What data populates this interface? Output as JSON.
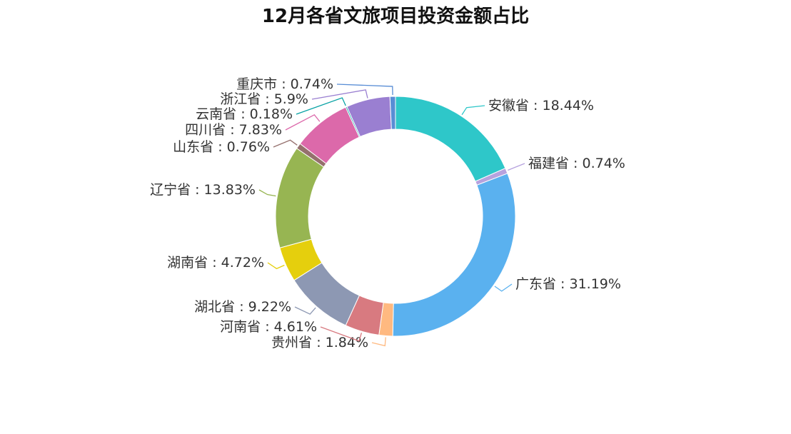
{
  "chart_data": {
    "type": "pie",
    "variant": "donut",
    "title": "12月各省文旅项目投资金额占比",
    "slices": [
      {
        "label": "安徽省",
        "value": 18.44,
        "display": "安徽省 : 18.44%",
        "color": "#2ec7c9"
      },
      {
        "label": "福建省",
        "value": 0.74,
        "display": "福建省 : 0.74%",
        "color": "#b6a2de"
      },
      {
        "label": "广东省",
        "value": 31.19,
        "display": "广东省 : 31.19%",
        "color": "#5ab1ef"
      },
      {
        "label": "贵州省",
        "value": 1.84,
        "display": "贵州省 : 1.84%",
        "color": "#ffb980"
      },
      {
        "label": "河南省",
        "value": 4.61,
        "display": "河南省 : 4.61%",
        "color": "#d87a80"
      },
      {
        "label": "湖北省",
        "value": 9.22,
        "display": "湖北省 : 9.22%",
        "color": "#8d98b3"
      },
      {
        "label": "湖南省",
        "value": 4.72,
        "display": "湖南省 : 4.72%",
        "color": "#e5cf0d"
      },
      {
        "label": "辽宁省",
        "value": 13.83,
        "display": "辽宁省 : 13.83%",
        "color": "#97b552"
      },
      {
        "label": "山东省",
        "value": 0.76,
        "display": "山东省 : 0.76%",
        "color": "#95706d"
      },
      {
        "label": "四川省",
        "value": 7.83,
        "display": "四川省 : 7.83%",
        "color": "#dc69aa"
      },
      {
        "label": "云南省",
        "value": 0.18,
        "display": "云南省 : 0.18%",
        "color": "#07a2a4"
      },
      {
        "label": "浙江省",
        "value": 5.9,
        "display": "浙江省 : 5.9%",
        "color": "#9a7fd1"
      },
      {
        "label": "重庆市",
        "value": 0.74,
        "display": "重庆市 : 0.74%",
        "color": "#588dd5"
      }
    ]
  }
}
